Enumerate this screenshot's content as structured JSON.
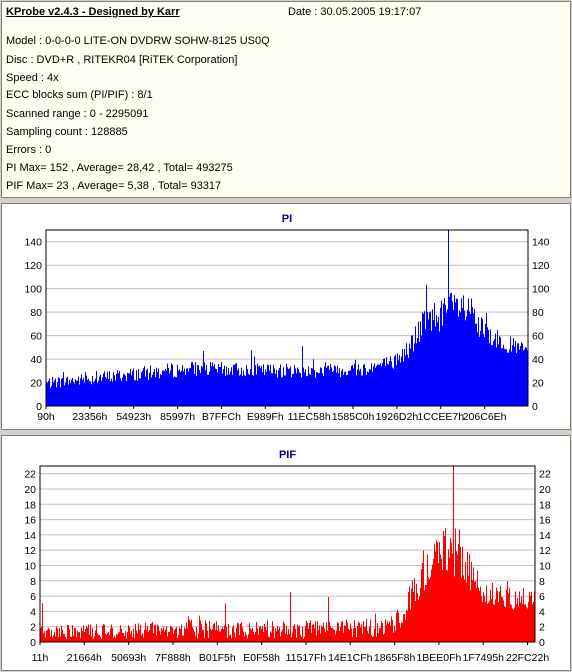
{
  "info": {
    "title": "KProbe v2.4.3 - Designed by Karr",
    "date": "Date : 30.05.2005 19:17:07",
    "lines": [
      "Model : 0-0-0-0 LITE-ON DVDRW SOHW-8125  US0Q",
      "Disc : DVD+R , RITEKR04 [RiTEK Corporation]",
      "Speed : 4x",
      "ECC blocks sum (PI/PIF) : 8/1",
      "Scanned range : 0 - 2295091",
      "Sampling count : 128885",
      "Errors : 0",
      "PI Max= 152 , Average= 28,42 , Total= 493275",
      "PIF Max= 23 , Average= 5,38 , Total= 93317"
    ]
  },
  "colors": {
    "pi": "#0000ff",
    "pif": "#ff0000",
    "plot_bg": "#ffffff",
    "grid": "#c0c0c0",
    "title": "#000080"
  },
  "chart_data": [
    {
      "type": "bar",
      "title": "PI",
      "ylim": [
        0,
        150
      ],
      "yticks": [
        0,
        20,
        40,
        60,
        80,
        100,
        120,
        140
      ],
      "xticks": [
        "90h",
        "23356h",
        "54923h",
        "85997h",
        "B7FFCh",
        "E989Fh",
        "11EC58h",
        "1585C0h",
        "1926D2h",
        "1CCEE7h",
        "206C6Eh"
      ],
      "grid": true,
      "x_range": [
        0,
        2295091
      ],
      "peak_value": 152,
      "profile": [
        [
          0,
          18,
          10
        ],
        [
          0.05,
          20,
          10
        ],
        [
          0.15,
          24,
          12
        ],
        [
          0.3,
          30,
          13
        ],
        [
          0.4,
          29,
          12
        ],
        [
          0.55,
          28,
          12
        ],
        [
          0.66,
          30,
          13
        ],
        [
          0.72,
          35,
          14
        ],
        [
          0.75,
          45,
          18
        ],
        [
          0.78,
          65,
          25
        ],
        [
          0.8,
          72,
          28
        ],
        [
          0.83,
          75,
          30
        ],
        [
          0.85,
          80,
          32
        ],
        [
          0.88,
          75,
          28
        ],
        [
          0.9,
          62,
          22
        ],
        [
          0.93,
          55,
          18
        ],
        [
          0.96,
          50,
          15
        ],
        [
          1.0,
          45,
          12
        ]
      ]
    },
    {
      "type": "bar",
      "title": "PIF",
      "ylim": [
        0,
        23
      ],
      "yticks": [
        0,
        2,
        4,
        6,
        8,
        10,
        12,
        14,
        16,
        18,
        20,
        22
      ],
      "xticks": [
        "11h",
        "21664h",
        "50693h",
        "7F888h",
        "B01F5h",
        "E0F58h",
        "11517Fh",
        "14E1CFh",
        "1865F8h",
        "1BEE0Fh",
        "1F7495h",
        "22FC22h"
      ],
      "grid": true,
      "x_range": [
        0,
        2295091
      ],
      "peak_value": 23,
      "profile": [
        [
          0,
          1,
          2
        ],
        [
          0.1,
          1,
          2
        ],
        [
          0.3,
          1.3,
          2.5
        ],
        [
          0.5,
          1.2,
          2.5
        ],
        [
          0.7,
          1.5,
          2.5
        ],
        [
          0.73,
          3,
          3
        ],
        [
          0.75,
          6,
          5
        ],
        [
          0.78,
          9,
          6
        ],
        [
          0.82,
          11,
          7
        ],
        [
          0.85,
          10,
          6
        ],
        [
          0.88,
          7,
          4
        ],
        [
          0.92,
          5.5,
          3
        ],
        [
          1.0,
          5,
          3
        ]
      ]
    }
  ]
}
